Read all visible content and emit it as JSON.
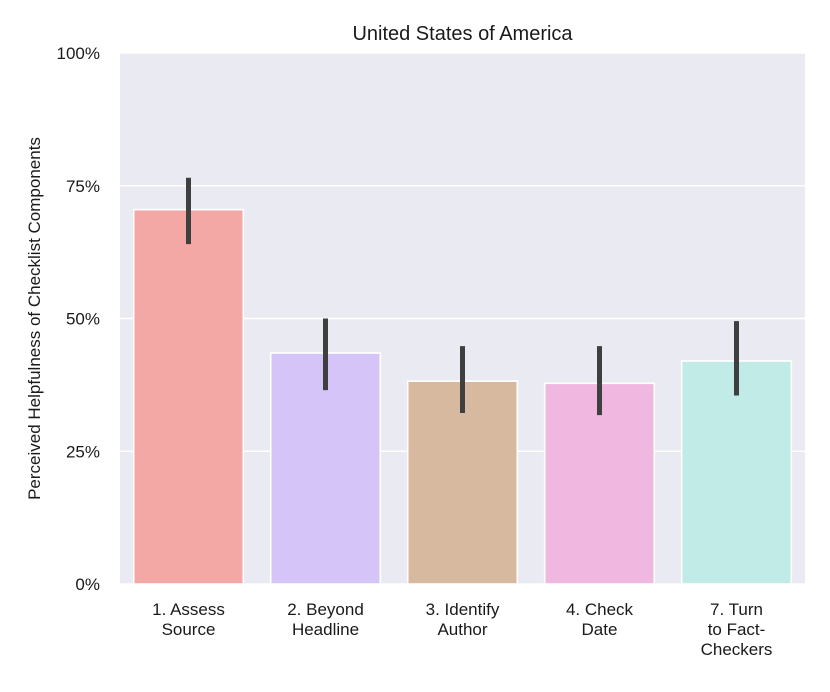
{
  "chart_data": {
    "type": "bar",
    "title": "United States of America",
    "xlabel": "",
    "ylabel": "Perceived Helpfulness of Checklist Components",
    "ylim": [
      0,
      100
    ],
    "yticks": [
      0,
      25,
      50,
      75,
      100
    ],
    "ytick_labels": [
      "0%",
      "25%",
      "50%",
      "75%",
      "100%"
    ],
    "grid": true,
    "categories": [
      [
        "1. Assess",
        "Source"
      ],
      [
        "2. Beyond",
        "Headline"
      ],
      [
        "3. Identify",
        "Author"
      ],
      [
        "4. Check",
        "Date"
      ],
      [
        "7. Turn",
        "to Fact-",
        "Checkers"
      ]
    ],
    "values": [
      70.5,
      43.5,
      38.2,
      37.8,
      42.0
    ],
    "error_low": [
      64.0,
      36.5,
      32.2,
      31.8,
      35.5
    ],
    "error_high": [
      76.5,
      50.0,
      44.8,
      44.8,
      49.5
    ],
    "colors": [
      "#f4a8a6",
      "#d4c4f7",
      "#d6b99f",
      "#f0b8e0",
      "#c0ebe6"
    ],
    "background": "#eaeaf2",
    "error_color": "#3f3f3f"
  }
}
